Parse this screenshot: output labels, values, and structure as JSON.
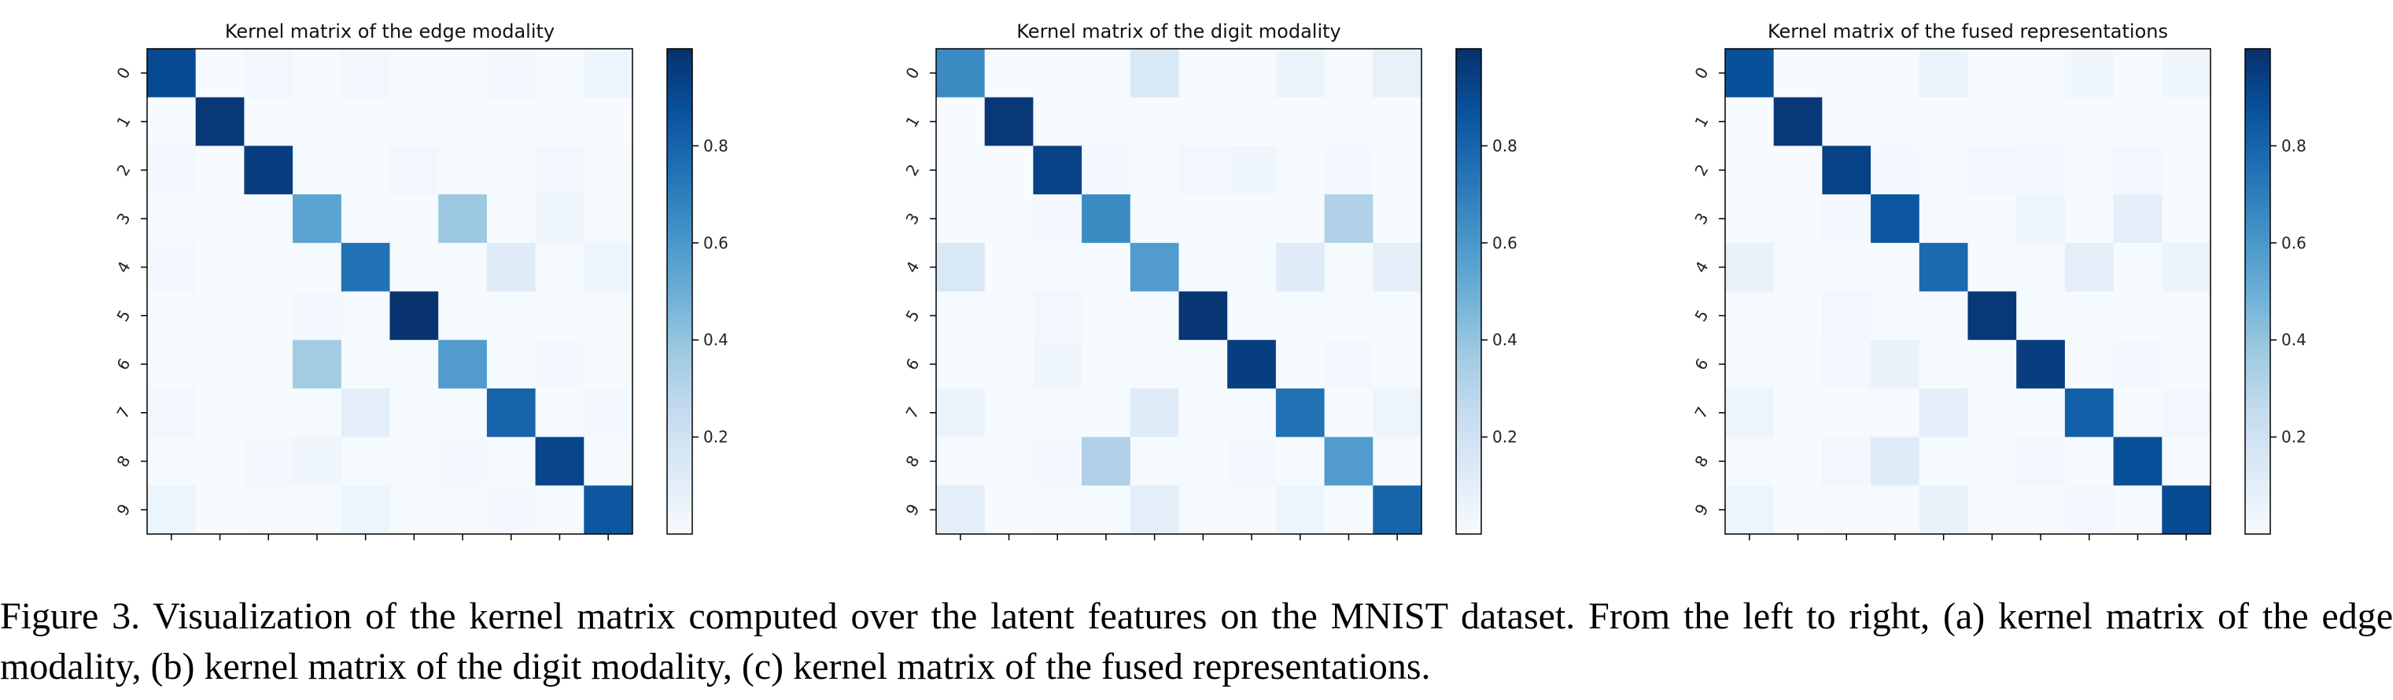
{
  "figure": {
    "caption": "Figure 3.   Visualization of the kernel matrix computed over the latent features on the MNIST dataset. From the left to right, (a) kernel matrix of the edge modality, (b) kernel matrix of the digit modality, (c) kernel matrix of the fused representations."
  },
  "colors": {
    "cmap": [
      "#f7fbff",
      "#deebf7",
      "#c6dbef",
      "#9ecae1",
      "#6baed6",
      "#4292c6",
      "#2171b5",
      "#08519c",
      "#08306b"
    ]
  },
  "chart_data": [
    {
      "type": "heatmap",
      "title": "Kernel matrix of the edge modality",
      "x_categories": [
        "0",
        "1",
        "2",
        "3",
        "4",
        "5",
        "6",
        "7",
        "8",
        "9"
      ],
      "y_categories": [
        "0",
        "1",
        "2",
        "3",
        "4",
        "5",
        "6",
        "7",
        "8",
        "9"
      ],
      "colorbar_ticks": [
        "0.2",
        "0.4",
        "0.6",
        "0.8"
      ],
      "value_range": [
        0,
        1
      ],
      "values": [
        [
          0.9,
          0.0,
          0.03,
          0.01,
          0.03,
          0.01,
          0.01,
          0.03,
          0.01,
          0.05
        ],
        [
          0.0,
          0.97,
          0.0,
          0.0,
          0.0,
          0.0,
          0.0,
          0.0,
          0.0,
          0.0
        ],
        [
          0.02,
          0.0,
          0.95,
          0.01,
          0.01,
          0.03,
          0.01,
          0.01,
          0.03,
          0.01
        ],
        [
          0.01,
          0.0,
          0.01,
          0.55,
          0.01,
          0.01,
          0.38,
          0.01,
          0.04,
          0.01
        ],
        [
          0.02,
          0.0,
          0.01,
          0.01,
          0.75,
          0.01,
          0.01,
          0.12,
          0.01,
          0.05
        ],
        [
          0.01,
          0.0,
          0.01,
          0.02,
          0.01,
          0.99,
          0.01,
          0.01,
          0.01,
          0.01
        ],
        [
          0.01,
          0.0,
          0.01,
          0.36,
          0.01,
          0.01,
          0.58,
          0.01,
          0.02,
          0.01
        ],
        [
          0.03,
          0.0,
          0.01,
          0.01,
          0.1,
          0.01,
          0.01,
          0.8,
          0.01,
          0.02
        ],
        [
          0.01,
          0.0,
          0.02,
          0.04,
          0.01,
          0.01,
          0.02,
          0.01,
          0.92,
          0.01
        ],
        [
          0.05,
          0.0,
          0.01,
          0.01,
          0.05,
          0.01,
          0.01,
          0.02,
          0.01,
          0.85
        ]
      ]
    },
    {
      "type": "heatmap",
      "title": "Kernel matrix of the digit modality",
      "x_categories": [
        "0",
        "1",
        "2",
        "3",
        "4",
        "5",
        "6",
        "7",
        "8",
        "9"
      ],
      "y_categories": [
        "0",
        "1",
        "2",
        "3",
        "4",
        "5",
        "6",
        "7",
        "8",
        "9"
      ],
      "colorbar_ticks": [
        "0.2",
        "0.4",
        "0.6",
        "0.8"
      ],
      "value_range": [
        0,
        1
      ],
      "values": [
        [
          0.65,
          0.0,
          0.01,
          0.01,
          0.15,
          0.01,
          0.01,
          0.06,
          0.01,
          0.08
        ],
        [
          0.0,
          0.97,
          0.0,
          0.0,
          0.0,
          0.0,
          0.0,
          0.0,
          0.0,
          0.0
        ],
        [
          0.01,
          0.0,
          0.93,
          0.02,
          0.01,
          0.03,
          0.04,
          0.01,
          0.02,
          0.01
        ],
        [
          0.01,
          0.0,
          0.02,
          0.65,
          0.01,
          0.01,
          0.01,
          0.01,
          0.32,
          0.01
        ],
        [
          0.15,
          0.0,
          0.01,
          0.01,
          0.58,
          0.01,
          0.01,
          0.12,
          0.01,
          0.1
        ],
        [
          0.01,
          0.0,
          0.03,
          0.01,
          0.01,
          0.98,
          0.01,
          0.01,
          0.01,
          0.01
        ],
        [
          0.01,
          0.0,
          0.04,
          0.01,
          0.01,
          0.01,
          0.95,
          0.01,
          0.02,
          0.01
        ],
        [
          0.06,
          0.0,
          0.01,
          0.01,
          0.12,
          0.01,
          0.01,
          0.75,
          0.01,
          0.05
        ],
        [
          0.01,
          0.0,
          0.02,
          0.32,
          0.01,
          0.01,
          0.02,
          0.01,
          0.58,
          0.01
        ],
        [
          0.1,
          0.0,
          0.01,
          0.01,
          0.1,
          0.01,
          0.01,
          0.05,
          0.01,
          0.8
        ]
      ]
    },
    {
      "type": "heatmap",
      "title": "Kernel matrix of the fused representations",
      "x_categories": [
        "0",
        "1",
        "2",
        "3",
        "4",
        "5",
        "6",
        "7",
        "8",
        "9"
      ],
      "y_categories": [
        "0",
        "1",
        "2",
        "3",
        "4",
        "5",
        "6",
        "7",
        "8",
        "9"
      ],
      "colorbar_ticks": [
        "0.2",
        "0.4",
        "0.6",
        "0.8"
      ],
      "value_range": [
        0,
        1
      ],
      "values": [
        [
          0.88,
          0.0,
          0.01,
          0.01,
          0.06,
          0.01,
          0.01,
          0.04,
          0.01,
          0.04
        ],
        [
          0.0,
          0.97,
          0.0,
          0.0,
          0.0,
          0.0,
          0.0,
          0.0,
          0.0,
          0.0
        ],
        [
          0.01,
          0.0,
          0.93,
          0.02,
          0.01,
          0.03,
          0.02,
          0.01,
          0.03,
          0.01
        ],
        [
          0.01,
          0.0,
          0.02,
          0.85,
          0.01,
          0.01,
          0.05,
          0.01,
          0.1,
          0.01
        ],
        [
          0.07,
          0.0,
          0.01,
          0.01,
          0.78,
          0.01,
          0.01,
          0.1,
          0.01,
          0.06
        ],
        [
          0.01,
          0.0,
          0.03,
          0.01,
          0.01,
          0.97,
          0.01,
          0.01,
          0.01,
          0.01
        ],
        [
          0.01,
          0.0,
          0.02,
          0.07,
          0.01,
          0.01,
          0.95,
          0.01,
          0.02,
          0.01
        ],
        [
          0.05,
          0.0,
          0.01,
          0.01,
          0.1,
          0.01,
          0.01,
          0.82,
          0.01,
          0.03
        ],
        [
          0.01,
          0.0,
          0.03,
          0.12,
          0.01,
          0.01,
          0.03,
          0.01,
          0.88,
          0.01
        ],
        [
          0.05,
          0.0,
          0.01,
          0.01,
          0.07,
          0.01,
          0.01,
          0.03,
          0.01,
          0.9
        ]
      ]
    }
  ]
}
